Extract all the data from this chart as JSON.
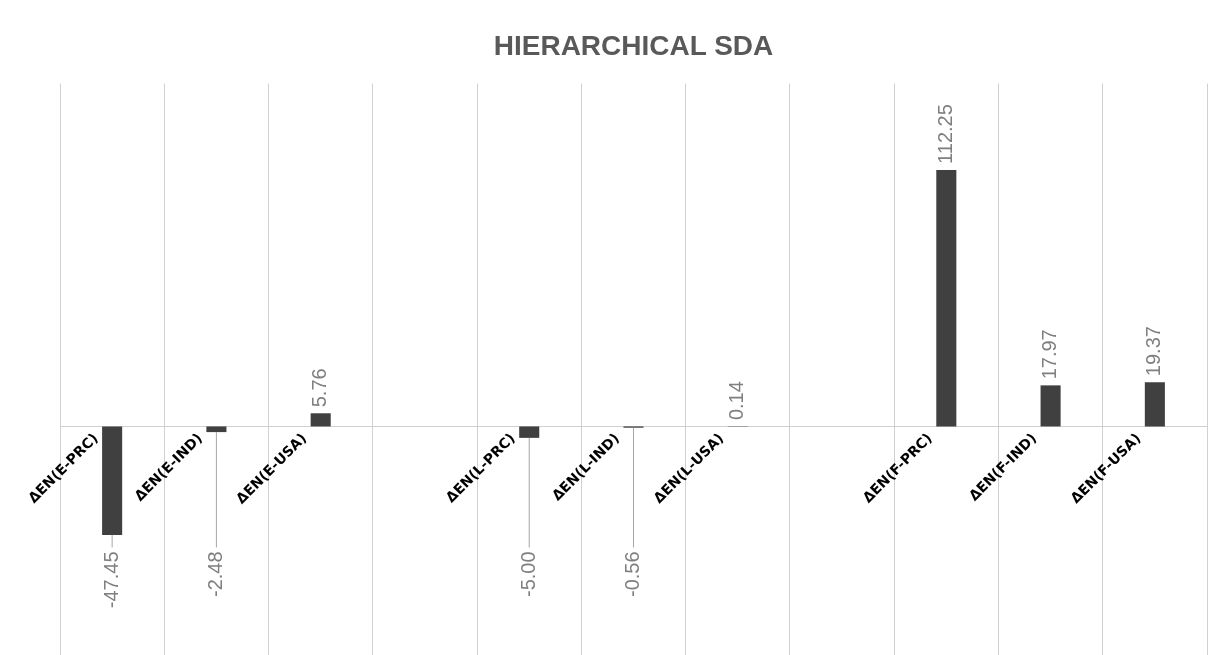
{
  "chart_data": {
    "type": "bar",
    "title": "HIERARCHICAL SDA",
    "categories": [
      "ΔEN(E-PRC)",
      "ΔEN(E-IND)",
      "ΔEN(E-USA)",
      null,
      "ΔEN(L-PRC)",
      "ΔEN(L-IND)",
      "ΔEN(L-USA)",
      null,
      "ΔEN(F-PRC)",
      "ΔEN(F-IND)",
      "ΔEN(F-USA)"
    ],
    "values": [
      -47.45,
      -2.48,
      5.76,
      null,
      -5.0,
      -0.56,
      0.14,
      null,
      112.25,
      17.97,
      19.37
    ],
    "value_labels": [
      "-47.45",
      "-2.48",
      "5.76",
      null,
      "-5.00",
      "-0.56",
      "0.14",
      null,
      "112.25",
      "17.97",
      "19.37"
    ],
    "color": "#404040",
    "grid": "x",
    "legend": false
  }
}
